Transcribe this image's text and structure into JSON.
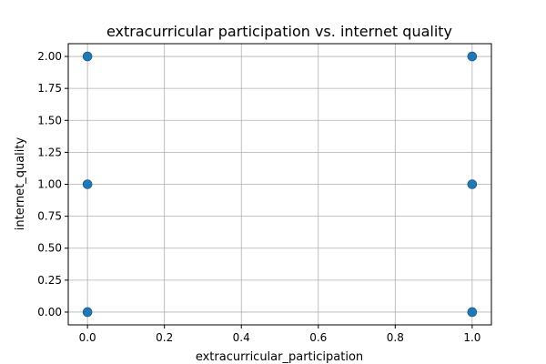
{
  "chart_data": {
    "type": "scatter",
    "title": "extracurricular participation vs. internet quality",
    "xlabel": "extracurricular_participation",
    "ylabel": "internet_quality",
    "xlim": [
      -0.05,
      1.05
    ],
    "ylim": [
      -0.1,
      2.1
    ],
    "xticks": [
      0.0,
      0.2,
      0.4,
      0.6,
      0.8,
      1.0
    ],
    "xtick_labels": [
      "0.0",
      "0.2",
      "0.4",
      "0.6",
      "0.8",
      "1.0"
    ],
    "yticks": [
      0.0,
      0.25,
      0.5,
      0.75,
      1.0,
      1.25,
      1.5,
      1.75,
      2.0
    ],
    "ytick_labels": [
      "0.00",
      "0.25",
      "0.50",
      "0.75",
      "1.00",
      "1.25",
      "1.50",
      "1.75",
      "2.00"
    ],
    "grid": true,
    "marker_color": "#1f77b4",
    "points": [
      {
        "x": 0,
        "y": 2
      },
      {
        "x": 0,
        "y": 1
      },
      {
        "x": 0,
        "y": 0
      },
      {
        "x": 1,
        "y": 2
      },
      {
        "x": 1,
        "y": 1
      },
      {
        "x": 1,
        "y": 0
      }
    ]
  }
}
